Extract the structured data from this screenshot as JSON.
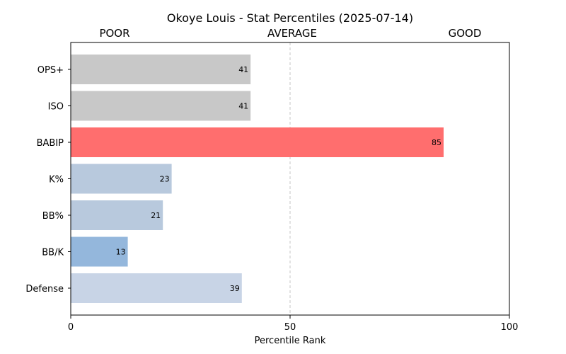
{
  "chart_data": {
    "type": "bar",
    "orientation": "horizontal",
    "title": "Okoye Louis - Stat Percentiles (2025-07-14)",
    "top_labels": [
      "POOR",
      "AVERAGE",
      "GOOD"
    ],
    "xlabel": "Percentile Rank",
    "ylabel": "",
    "xlim": [
      0,
      100
    ],
    "xticks": [
      0,
      50,
      100
    ],
    "reference_line": 50,
    "grid": false,
    "categories": [
      "OPS+",
      "ISO",
      "BABIP",
      "K%",
      "BB%",
      "BB/K",
      "Defense"
    ],
    "values": [
      41,
      41,
      85,
      23,
      21,
      13,
      39
    ],
    "colors": [
      "#c8c8c8",
      "#c8c8c8",
      "#ff6e6e",
      "#b8c9dd",
      "#b8c9dd",
      "#94b7dc",
      "#c8d4e6"
    ]
  }
}
